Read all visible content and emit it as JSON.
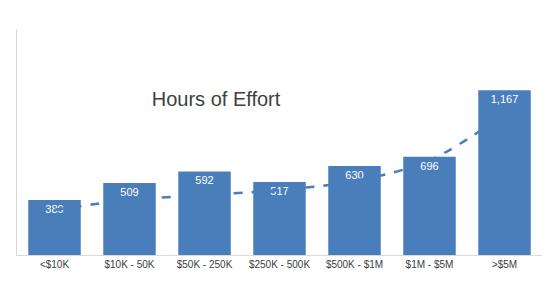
{
  "chart_data": {
    "type": "bar",
    "title": "Hours of Effort",
    "categories": [
      "<$10K",
      "$10K - 50K",
      "$50K - 250K",
      "$250K - 500K",
      "$500K - $1M",
      "$1M - $5M",
      ">$5M"
    ],
    "series": [
      {
        "type": "bar",
        "color": "#4a7ebb",
        "data_labels": true,
        "values": [
          389,
          509,
          592,
          517,
          630,
          696,
          1167
        ],
        "value_labels": [
          "389",
          "509",
          "592",
          "517",
          "630",
          "696",
          "1,167"
        ]
      },
      {
        "type": "line",
        "color": "#4a7ebb",
        "line_style": "dashed",
        "values": [
          320,
          390,
          425,
          460,
          525,
          670,
          1000
        ]
      }
    ],
    "ylim": [
      0,
      1600
    ],
    "yticks": [],
    "grid": false,
    "tick_labels": "x"
  }
}
